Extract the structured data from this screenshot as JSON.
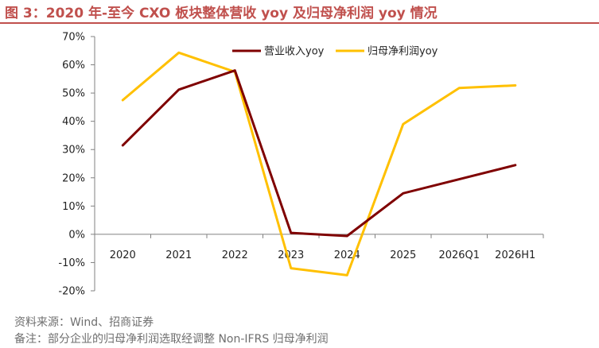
{
  "figure": {
    "title": "图 3：2020 年-至今 CXO 板块整体营收 yoy 及归母净利润 yoy 情况",
    "source": "资料来源：Wind、招商证券",
    "note": "备注：部分企业的归母净利润选取经调整 Non-IFRS 归母净利润"
  },
  "colors": {
    "title": "#c0504d",
    "series_revenue": "#7f0000",
    "series_profit": "#ffc000",
    "axis": "#808080"
  },
  "chart_data": {
    "type": "line",
    "categories": [
      "2020",
      "2021",
      "2022",
      "2023",
      "2024",
      "2025",
      "2026Q1",
      "2026H1"
    ],
    "series": [
      {
        "name": "营业收入yoy",
        "values": [
          31.5,
          51.2,
          58.0,
          0.5,
          -0.6,
          14.5,
          19.5,
          24.5
        ]
      },
      {
        "name": "归母净利润yoy",
        "values": [
          47.5,
          64.3,
          57.5,
          -12.0,
          -14.5,
          39.0,
          51.8,
          52.7
        ]
      }
    ],
    "yticks": [
      "70%",
      "60%",
      "50%",
      "40%",
      "30%",
      "20%",
      "10%",
      "0%",
      "-10%",
      "-20%"
    ],
    "ylim": [
      -20,
      70
    ],
    "ylabel": "",
    "xlabel": "",
    "legend": "top-center",
    "grid": false
  }
}
